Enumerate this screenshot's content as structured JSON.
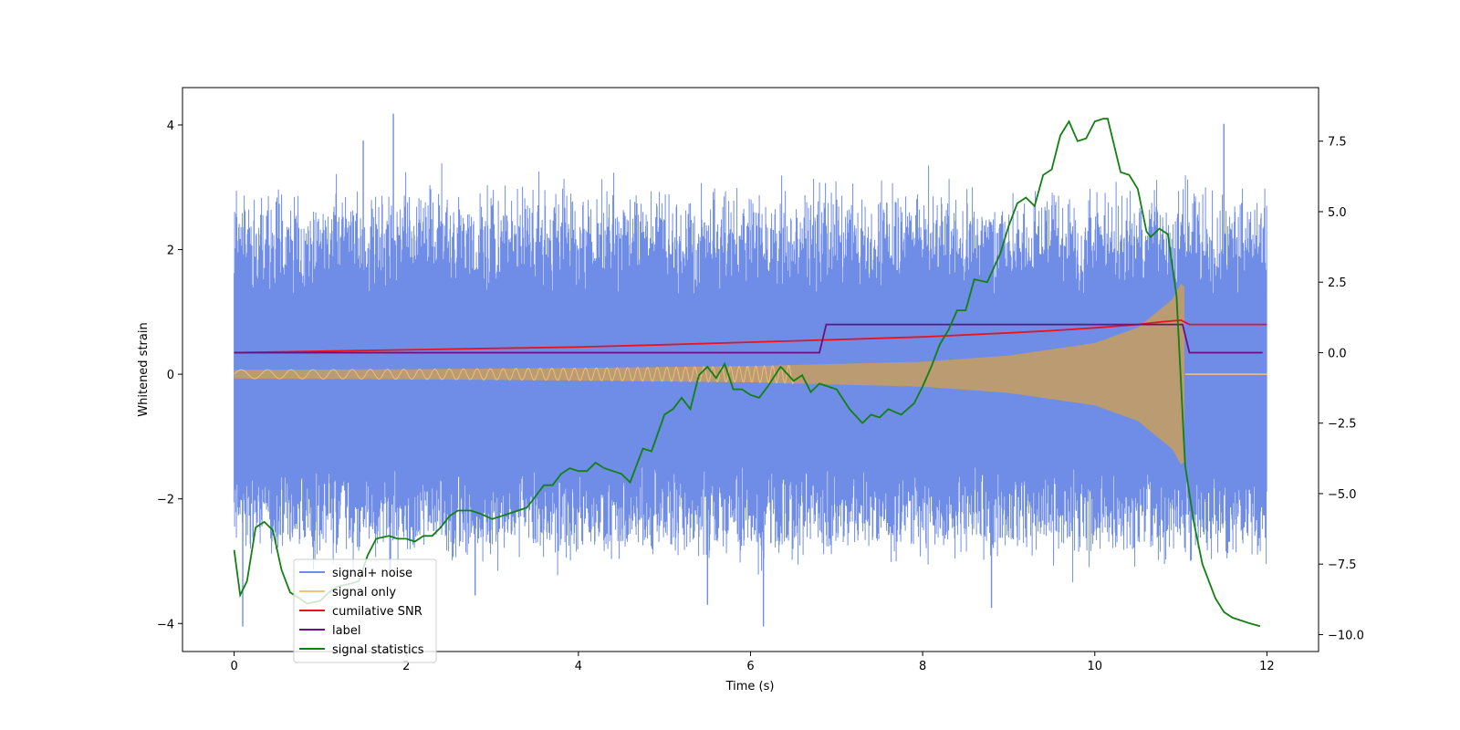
{
  "chart_data": {
    "type": "line",
    "title": "",
    "xlabel": "Time (s)",
    "ylabel_left": "Whitened strain",
    "ylabel_right": "",
    "xlim": [
      -0.6,
      12.6
    ],
    "ylim_left": [
      -4.45,
      4.6
    ],
    "ylim_right": [
      -10.6,
      9.4
    ],
    "xticks": [
      "0",
      "2",
      "4",
      "6",
      "8",
      "10",
      "12"
    ],
    "yticks_left": [
      "−4",
      "−2",
      "0",
      "2",
      "4"
    ],
    "yticks_right": [
      "−10.0",
      "−7.5",
      "−5.0",
      "−2.5",
      "0.0",
      "2.5",
      "5.0",
      "7.5"
    ],
    "colors": {
      "noise": "#6f8de6",
      "signal": "#f5c27a",
      "snr": "#e8141c",
      "label": "#6a1080",
      "stat": "#128012"
    },
    "series": [
      {
        "name": "signal+ noise",
        "axis": "left",
        "kind": "noise_band",
        "x_range": [
          0,
          12
        ],
        "envelope_sigma": 0.8,
        "typical_max": 2.7,
        "typical_min": -2.6,
        "outliers": [
          [
            1.85,
            4.18
          ],
          [
            1.5,
            3.75
          ],
          [
            11.5,
            4.02
          ],
          [
            0.1,
            -4.05
          ],
          [
            6.15,
            -4.05
          ],
          [
            8.8,
            -3.75
          ],
          [
            2.8,
            -3.55
          ],
          [
            5.5,
            -3.7
          ]
        ]
      },
      {
        "name": "signal only",
        "axis": "left",
        "kind": "chirp",
        "x_range": [
          0,
          11.05
        ],
        "envelope": [
          [
            0,
            0.07
          ],
          [
            2,
            0.08
          ],
          [
            4,
            0.1
          ],
          [
            6,
            0.13
          ],
          [
            8,
            0.2
          ],
          [
            9,
            0.3
          ],
          [
            10,
            0.5
          ],
          [
            10.5,
            0.75
          ],
          [
            10.9,
            1.2
          ],
          [
            11.0,
            1.45
          ],
          [
            11.05,
            1.4
          ]
        ],
        "after_merger_value": 0.0
      },
      {
        "name": "cumilative SNR",
        "axis": "right",
        "x": [
          0,
          1,
          2,
          3,
          4,
          5,
          6,
          7,
          8,
          9,
          9.5,
          10,
          10.5,
          10.8,
          11.0,
          11.1,
          12
        ],
        "y": [
          0.0,
          0.05,
          0.1,
          0.15,
          0.2,
          0.28,
          0.37,
          0.46,
          0.56,
          0.7,
          0.78,
          0.88,
          1.0,
          1.1,
          1.15,
          1.0,
          1.0
        ]
      },
      {
        "name": "label",
        "axis": "right",
        "x": [
          0,
          6.8,
          6.88,
          11.02,
          11.1,
          11.95
        ],
        "y": [
          0,
          0,
          1,
          1,
          0,
          0
        ]
      },
      {
        "name": "signal statistics",
        "axis": "right",
        "x": [
          0,
          0.07,
          0.15,
          0.25,
          0.35,
          0.45,
          0.55,
          0.65,
          0.75,
          0.85,
          1.0,
          1.1,
          1.2,
          1.35,
          1.45,
          1.55,
          1.65,
          1.8,
          1.9,
          2.0,
          2.1,
          2.2,
          2.3,
          2.4,
          2.5,
          2.6,
          2.75,
          2.85,
          3.0,
          3.1,
          3.2,
          3.3,
          3.4,
          3.5,
          3.6,
          3.7,
          3.8,
          3.9,
          4.0,
          4.1,
          4.2,
          4.3,
          4.4,
          4.5,
          4.6,
          4.75,
          4.85,
          5.0,
          5.1,
          5.2,
          5.3,
          5.4,
          5.5,
          5.6,
          5.7,
          5.8,
          5.9,
          6.0,
          6.1,
          6.2,
          6.35,
          6.5,
          6.6,
          6.7,
          6.8,
          6.9,
          7.0,
          7.15,
          7.3,
          7.4,
          7.5,
          7.6,
          7.75,
          7.9,
          8.0,
          8.1,
          8.2,
          8.3,
          8.4,
          8.5,
          8.6,
          8.75,
          8.9,
          9.0,
          9.1,
          9.2,
          9.3,
          9.4,
          9.5,
          9.6,
          9.7,
          9.8,
          9.9,
          10.0,
          10.1,
          10.15,
          10.3,
          10.4,
          10.5,
          10.6,
          10.65,
          10.75,
          10.85,
          10.95,
          11.05,
          11.15,
          11.25,
          11.4,
          11.5,
          11.6,
          11.7,
          11.8,
          11.92
        ],
        "y": [
          -7.0,
          -8.6,
          -8.1,
          -6.2,
          -6.0,
          -6.3,
          -7.7,
          -8.5,
          -8.7,
          -8.9,
          -8.8,
          -8.5,
          -8.3,
          -8.2,
          -8.1,
          -7.2,
          -6.6,
          -6.5,
          -6.6,
          -6.6,
          -6.7,
          -6.5,
          -6.5,
          -6.2,
          -5.8,
          -5.6,
          -5.6,
          -5.7,
          -5.9,
          -5.8,
          -5.7,
          -5.6,
          -5.5,
          -5.1,
          -4.7,
          -4.7,
          -4.3,
          -4.1,
          -4.2,
          -4.2,
          -3.9,
          -4.1,
          -4.2,
          -4.3,
          -4.6,
          -3.4,
          -3.5,
          -2.2,
          -2.0,
          -1.6,
          -2.0,
          -0.8,
          -0.5,
          -0.9,
          -0.4,
          -1.3,
          -1.3,
          -1.5,
          -1.6,
          -1.2,
          -0.5,
          -1.0,
          -0.8,
          -1.4,
          -1.1,
          -1.2,
          -1.3,
          -2.0,
          -2.5,
          -2.2,
          -2.3,
          -2.0,
          -2.2,
          -1.8,
          -1.2,
          -0.5,
          0.3,
          0.8,
          1.5,
          1.5,
          2.6,
          2.5,
          3.5,
          4.5,
          5.3,
          5.5,
          5.2,
          6.3,
          6.5,
          7.7,
          8.2,
          7.5,
          7.6,
          8.2,
          8.3,
          8.3,
          6.4,
          6.3,
          5.8,
          4.3,
          4.1,
          4.4,
          4.2,
          2.0,
          -4.0,
          -6.0,
          -7.5,
          -8.7,
          -9.2,
          -9.4,
          -9.5,
          -9.6,
          -9.7
        ]
      }
    ],
    "legend": {
      "location": "lower-left",
      "entries": [
        "signal+ noise",
        "signal only",
        "cumilative SNR",
        "label",
        "signal statistics"
      ]
    }
  }
}
